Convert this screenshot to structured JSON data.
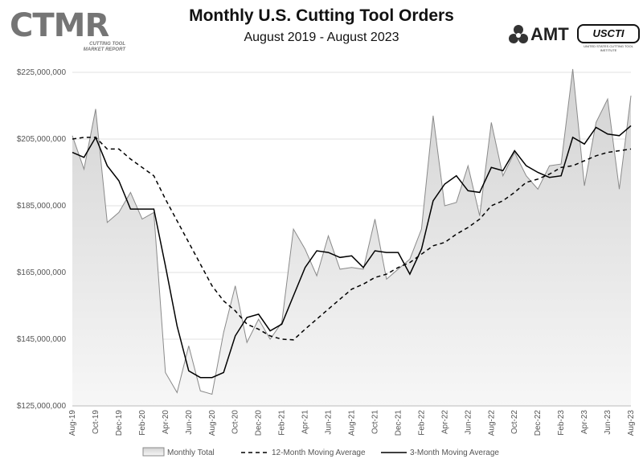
{
  "logos": {
    "ctmr_letters": "CTMR",
    "ctmr_tagline": "CUTTING TOOL MARKET REPORT",
    "amt": "AMT",
    "usct": "USCTI",
    "usct_tagline": "UNITED STATES CUTTING TOOL INSTITUTE"
  },
  "colors": {
    "area_fill_top": "#d2d2d2",
    "area_fill_bottom": "#f7f7f7",
    "area_stroke": "#8a8a8a",
    "line": "#000000",
    "grid": "#e0e0e0"
  },
  "chart_data": {
    "type": "line",
    "title": "Monthly U.S. Cutting Tool Orders",
    "subtitle": "August 2019 - August 2023",
    "xlabel": "",
    "ylabel": "",
    "ylim": [
      125000000,
      230000000
    ],
    "yticks": [
      125000000,
      145000000,
      165000000,
      185000000,
      205000000,
      225000000
    ],
    "ytick_labels": [
      "$125,000,000",
      "$145,000,000",
      "$165,000,000",
      "$185,000,000",
      "$205,000,000",
      "$225,000,000"
    ],
    "categories": [
      "Aug-19",
      "Sep-19",
      "Oct-19",
      "Nov-19",
      "Dec-19",
      "Jan-20",
      "Feb-20",
      "Mar-20",
      "Apr-20",
      "May-20",
      "Jun-20",
      "Jul-20",
      "Aug-20",
      "Sep-20",
      "Oct-20",
      "Nov-20",
      "Dec-20",
      "Jan-21",
      "Feb-21",
      "Mar-21",
      "Apr-21",
      "May-21",
      "Jun-21",
      "Jul-21",
      "Aug-21",
      "Sep-21",
      "Oct-21",
      "Nov-21",
      "Dec-21",
      "Jan-22",
      "Feb-22",
      "Mar-22",
      "Apr-22",
      "May-22",
      "Jun-22",
      "Jul-22",
      "Aug-22",
      "Sep-22",
      "Oct-22",
      "Nov-22",
      "Dec-22",
      "Jan-23",
      "Feb-23",
      "Mar-23",
      "Apr-23",
      "May-23",
      "Jun-23",
      "Jul-23",
      "Aug-23"
    ],
    "tick_labels": [
      "Aug-19",
      "Oct-19",
      "Dec-19",
      "Feb-20",
      "Apr-20",
      "Jun-20",
      "Aug-20",
      "Oct-20",
      "Dec-20",
      "Feb-21",
      "Apr-21",
      "Jun-21",
      "Aug-21",
      "Oct-21",
      "Dec-21",
      "Feb-22",
      "Apr-22",
      "Jun-22",
      "Aug-22",
      "Oct-22",
      "Dec-22",
      "Feb-23",
      "Apr-23",
      "Jun-23",
      "Aug-23"
    ],
    "legend_position": "bottom",
    "series": [
      {
        "name": "Monthly Total",
        "style": "area",
        "values": [
          206000000,
          196000000,
          214000000,
          180000000,
          183000000,
          189000000,
          181000000,
          183000000,
          135000000,
          129000000,
          143000000,
          129500000,
          128500000,
          147000000,
          161000000,
          144000000,
          151000000,
          145000000,
          150000000,
          178000000,
          172000000,
          164000000,
          176000000,
          166000000,
          166500000,
          166000000,
          181000000,
          163000000,
          166000000,
          169000000,
          178000000,
          212000000,
          185000000,
          186000000,
          197000000,
          182000000,
          210000000,
          194000000,
          201000000,
          194000000,
          190000000,
          197000000,
          197500000,
          226000000,
          191000000,
          210000000,
          217000000,
          190000000,
          218000000
        ]
      },
      {
        "name": "12-Month Moving Average",
        "style": "dashed",
        "values": [
          205000000,
          205500000,
          205500000,
          202000000,
          202000000,
          199000000,
          196500000,
          194000000,
          187000000,
          180500000,
          174000000,
          167500000,
          161000000,
          156500000,
          153500000,
          149500000,
          148000000,
          146000000,
          145000000,
          144800000,
          148000000,
          151000000,
          154000000,
          157000000,
          160000000,
          161500000,
          163500000,
          164500000,
          166500000,
          168000000,
          170500000,
          173000000,
          174000000,
          176500000,
          178500000,
          181000000,
          185000000,
          186500000,
          189000000,
          192000000,
          193000000,
          194500000,
          196500000,
          197000000,
          198500000,
          200000000,
          201000000,
          201500000,
          202000000
        ]
      },
      {
        "name": "3-Month Moving Average",
        "style": "solid",
        "values": [
          201000000,
          199500000,
          205500000,
          197000000,
          192500000,
          184000000,
          184000000,
          184000000,
          167000000,
          149000000,
          135500000,
          133500000,
          133500000,
          135000000,
          146000000,
          151500000,
          152500000,
          147500000,
          149500000,
          158000000,
          166500000,
          171500000,
          171000000,
          169500000,
          170000000,
          166500000,
          171500000,
          171000000,
          171000000,
          164500000,
          172000000,
          186500000,
          191500000,
          194000000,
          189500000,
          189000000,
          196500000,
          195500000,
          201500000,
          197000000,
          195000000,
          193500000,
          194000000,
          205500000,
          203500000,
          208500000,
          206500000,
          206000000,
          209000000
        ]
      }
    ]
  }
}
